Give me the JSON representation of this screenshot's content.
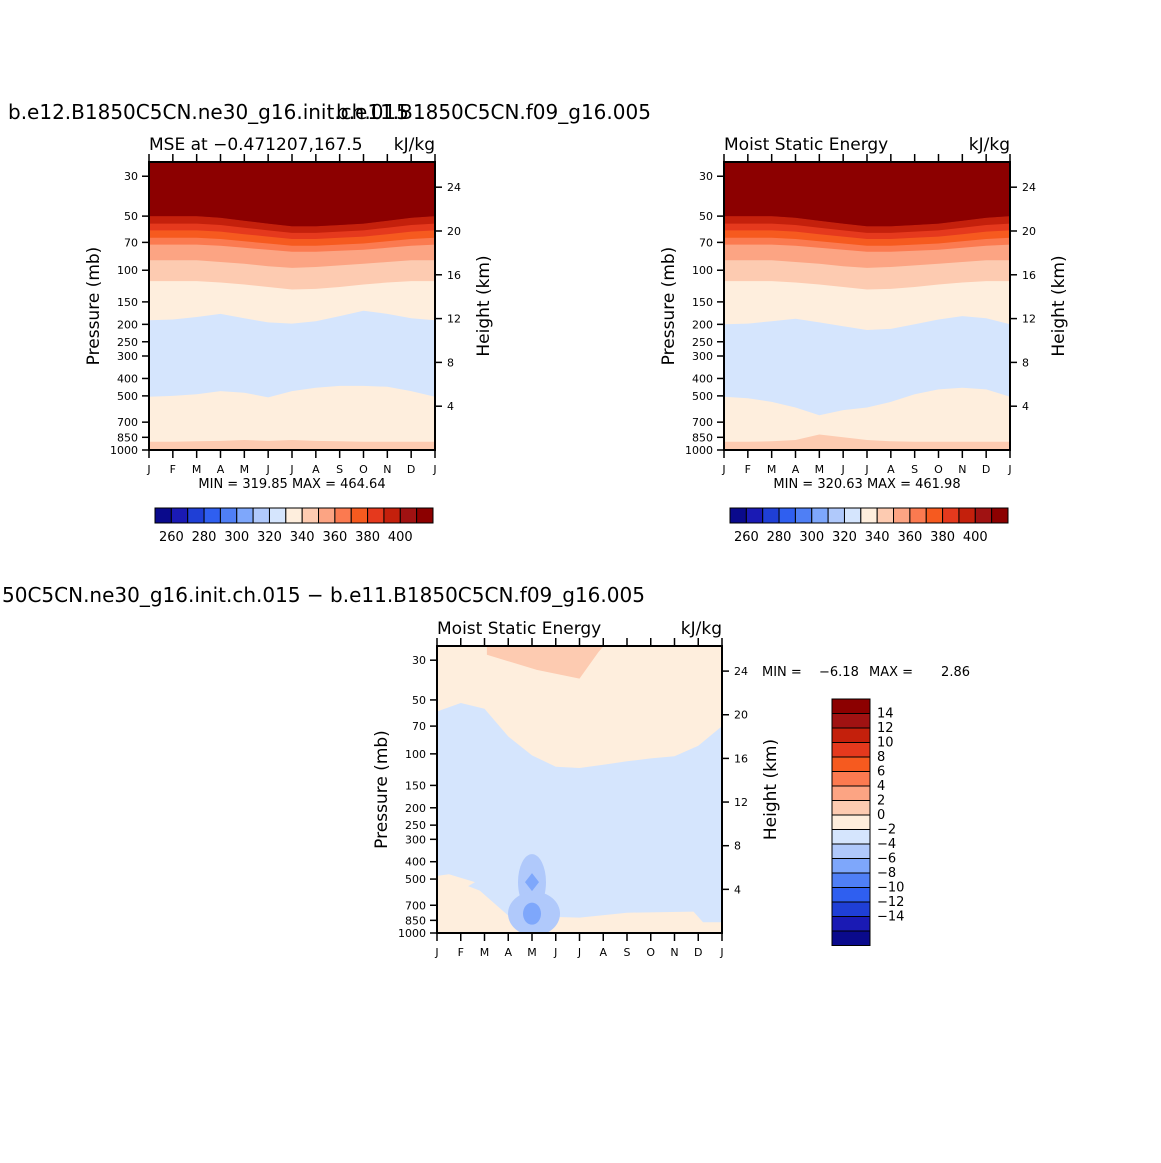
{
  "titles": {
    "panel1_run": "b.e12.B1850C5CN.ne30_g16.init.ch.015",
    "panel2_run": "b.e11.B1850C5CN.f09_g16.005",
    "diff_title": "50C5CN.ne30_g16.init.ch.015 − b.e11.B1850C5CN.f09_g16.005"
  },
  "chart_data": [
    {
      "type": "heatmap",
      "title": "MSE at −0.471207,167.5",
      "units": "kJ/kg",
      "ylabel": "Pressure (mb)",
      "ylabel_right": "Height (km)",
      "x_ticks": [
        "J",
        "F",
        "M",
        "A",
        "M",
        "J",
        "J",
        "A",
        "S",
        "O",
        "N",
        "D",
        "J"
      ],
      "y_ticks": [
        30,
        50,
        70,
        100,
        150,
        200,
        250,
        300,
        400,
        500,
        700,
        850,
        1000
      ],
      "y_right_ticks": [
        24,
        20,
        16,
        12,
        8,
        4
      ],
      "stats": "MIN = 319.85 MAX = 464.64",
      "min": 319.85,
      "max": 464.64,
      "contour_levels": [
        250,
        260,
        270,
        280,
        290,
        300,
        310,
        320,
        330,
        340,
        350,
        360,
        370,
        380,
        390,
        400
      ],
      "colorbar_labels": [
        260,
        280,
        300,
        320,
        340,
        360,
        380,
        400
      ],
      "legend": "bottom",
      "boundaries_pressure_by_month": {
        "400": [
          50,
          50,
          50,
          51,
          53,
          55,
          57,
          57,
          56,
          55,
          53,
          51,
          50
        ],
        "390": [
          55,
          55,
          55,
          56,
          58,
          60,
          62,
          62,
          61,
          60,
          58,
          56,
          55
        ],
        "380": [
          60,
          60,
          60,
          61,
          63,
          65,
          67,
          67,
          66,
          65,
          63,
          61,
          60
        ],
        "370": [
          66,
          66,
          66,
          67,
          69,
          71,
          73,
          73,
          72,
          71,
          69,
          67,
          66
        ],
        "360": [
          72,
          72,
          72,
          73,
          75,
          77,
          79,
          79,
          78,
          77,
          75,
          73,
          72
        ],
        "350": [
          88,
          88,
          88,
          90,
          92,
          95,
          97,
          96,
          94,
          92,
          90,
          88,
          88
        ],
        "340": [
          115,
          115,
          115,
          117,
          120,
          124,
          128,
          127,
          124,
          120,
          117,
          115,
          115
        ],
        "330": [
          190,
          188,
          182,
          175,
          185,
          195,
          198,
          192,
          180,
          168,
          175,
          185,
          190
        ],
        "320": [
          505,
          500,
          490,
          470,
          480,
          510,
          470,
          450,
          440,
          440,
          445,
          470,
          505
        ],
        "330b": [
          900,
          900,
          895,
          890,
          880,
          890,
          880,
          890,
          895,
          900,
          900,
          900,
          900
        ]
      }
    },
    {
      "type": "heatmap",
      "title": "Moist Static Energy",
      "units": "kJ/kg",
      "ylabel": "Pressure (mb)",
      "ylabel_right": "Height (km)",
      "x_ticks": [
        "J",
        "F",
        "M",
        "A",
        "M",
        "J",
        "J",
        "A",
        "S",
        "O",
        "N",
        "D",
        "J"
      ],
      "y_ticks": [
        30,
        50,
        70,
        100,
        150,
        200,
        250,
        300,
        400,
        500,
        700,
        850,
        1000
      ],
      "y_right_ticks": [
        24,
        20,
        16,
        12,
        8,
        4
      ],
      "stats": "MIN = 320.63 MAX = 461.98",
      "min": 320.63,
      "max": 461.98,
      "contour_levels": [
        250,
        260,
        270,
        280,
        290,
        300,
        310,
        320,
        330,
        340,
        350,
        360,
        370,
        380,
        390,
        400
      ],
      "colorbar_labels": [
        260,
        280,
        300,
        320,
        340,
        360,
        380,
        400
      ],
      "legend": "bottom",
      "boundaries_pressure_by_month": {
        "400": [
          50,
          50,
          50,
          51,
          53,
          55,
          57,
          57,
          56,
          55,
          53,
          51,
          50
        ],
        "390": [
          55,
          55,
          55,
          56,
          58,
          60,
          62,
          62,
          61,
          60,
          58,
          56,
          55
        ],
        "380": [
          60,
          60,
          60,
          61,
          63,
          65,
          67,
          67,
          66,
          65,
          63,
          61,
          60
        ],
        "370": [
          66,
          66,
          66,
          67,
          69,
          71,
          73,
          73,
          72,
          71,
          69,
          67,
          66
        ],
        "360": [
          72,
          72,
          72,
          73,
          75,
          77,
          79,
          79,
          78,
          77,
          75,
          73,
          72
        ],
        "350": [
          88,
          88,
          88,
          90,
          92,
          95,
          97,
          96,
          94,
          92,
          90,
          88,
          88
        ],
        "340": [
          115,
          115,
          115,
          117,
          120,
          124,
          128,
          127,
          124,
          120,
          117,
          115,
          115
        ],
        "330": [
          200,
          198,
          192,
          186,
          195,
          205,
          215,
          212,
          200,
          188,
          180,
          185,
          200
        ],
        "320": [
          505,
          515,
          540,
          580,
          640,
          600,
          580,
          540,
          490,
          460,
          450,
          460,
          505
        ],
        "330b": [
          900,
          900,
          895,
          880,
          820,
          850,
          880,
          895,
          900,
          900,
          900,
          900,
          900
        ]
      }
    },
    {
      "type": "heatmap",
      "title": "Moist Static Energy",
      "units": "kJ/kg",
      "ylabel": "Pressure (mb)",
      "ylabel_right": "Height (km)",
      "x_ticks": [
        "J",
        "F",
        "M",
        "A",
        "M",
        "J",
        "J",
        "A",
        "S",
        "O",
        "N",
        "D",
        "J"
      ],
      "y_ticks": [
        30,
        50,
        70,
        100,
        150,
        200,
        250,
        300,
        400,
        500,
        700,
        850,
        1000
      ],
      "y_right_ticks": [
        24,
        20,
        16,
        12,
        8,
        4
      ],
      "stats_min_label": "MIN =",
      "stats_min": "−6.18",
      "stats_max_label": "MAX =",
      "stats_max": "2.86",
      "min": -6.18,
      "max": 2.86,
      "contour_levels": [
        -16,
        -14,
        -12,
        -10,
        -8,
        -6,
        -4,
        -2,
        0,
        2,
        4,
        6,
        8,
        10,
        12,
        14,
        16
      ],
      "colorbar_labels": [
        "14",
        "12",
        "10",
        "8",
        "6",
        "4",
        "2",
        "0",
        "−2",
        "−4",
        "−6",
        "−8",
        "−10",
        "−12",
        "−14"
      ],
      "legend": "right",
      "zero_boundary_pressure_by_month": [
        58,
        52,
        56,
        80,
        102,
        118,
        120,
        115,
        110,
        106,
        103,
        90,
        70
      ],
      "positive_cap_2_to_4": {
        "month_range": [
          2.1,
          7.2
        ],
        "top_pressure": 28,
        "bottom_pressure": 38
      },
      "negative_blobs_minus2_to_minus4": [
        {
          "center_month": 4.0,
          "center_pressure": 520,
          "note": "upper"
        },
        {
          "center_month": 4.0,
          "center_pressure": 780,
          "note": "lower"
        }
      ]
    }
  ],
  "colors": {
    "scale_negative": [
      "#0a0a8c",
      "#1a1ab4",
      "#1f3fd6",
      "#2f5ff0",
      "#4f7ff5",
      "#7ea7fb",
      "#b0c9fb",
      "#d5e5fd"
    ],
    "scale_positive": [
      "#feeedd",
      "#fdcbb1",
      "#fca483",
      "#fb7a50",
      "#f65a1f",
      "#e5391d",
      "#c4200c",
      "#a01212",
      "#8c0000"
    ]
  }
}
